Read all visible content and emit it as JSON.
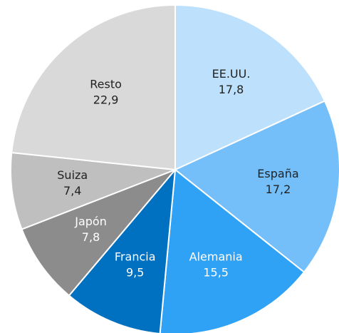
{
  "chart_data": {
    "type": "pie",
    "categories": [
      "EE.UU.",
      "España",
      "Alemania",
      "Francia",
      "Japón",
      "Suiza",
      "Resto"
    ],
    "values": [
      17.8,
      17.2,
      15.5,
      9.5,
      7.8,
      7.4,
      22.9
    ],
    "value_labels": [
      "17,8",
      "17,2",
      "15,5",
      "9,5",
      "7,8",
      "7,4",
      "22,9"
    ],
    "colors": [
      "#bde0fc",
      "#74bff9",
      "#2fa2f6",
      "#0070c0",
      "#8c8c8c",
      "#bfbfbf",
      "#d9d9d9"
    ]
  }
}
